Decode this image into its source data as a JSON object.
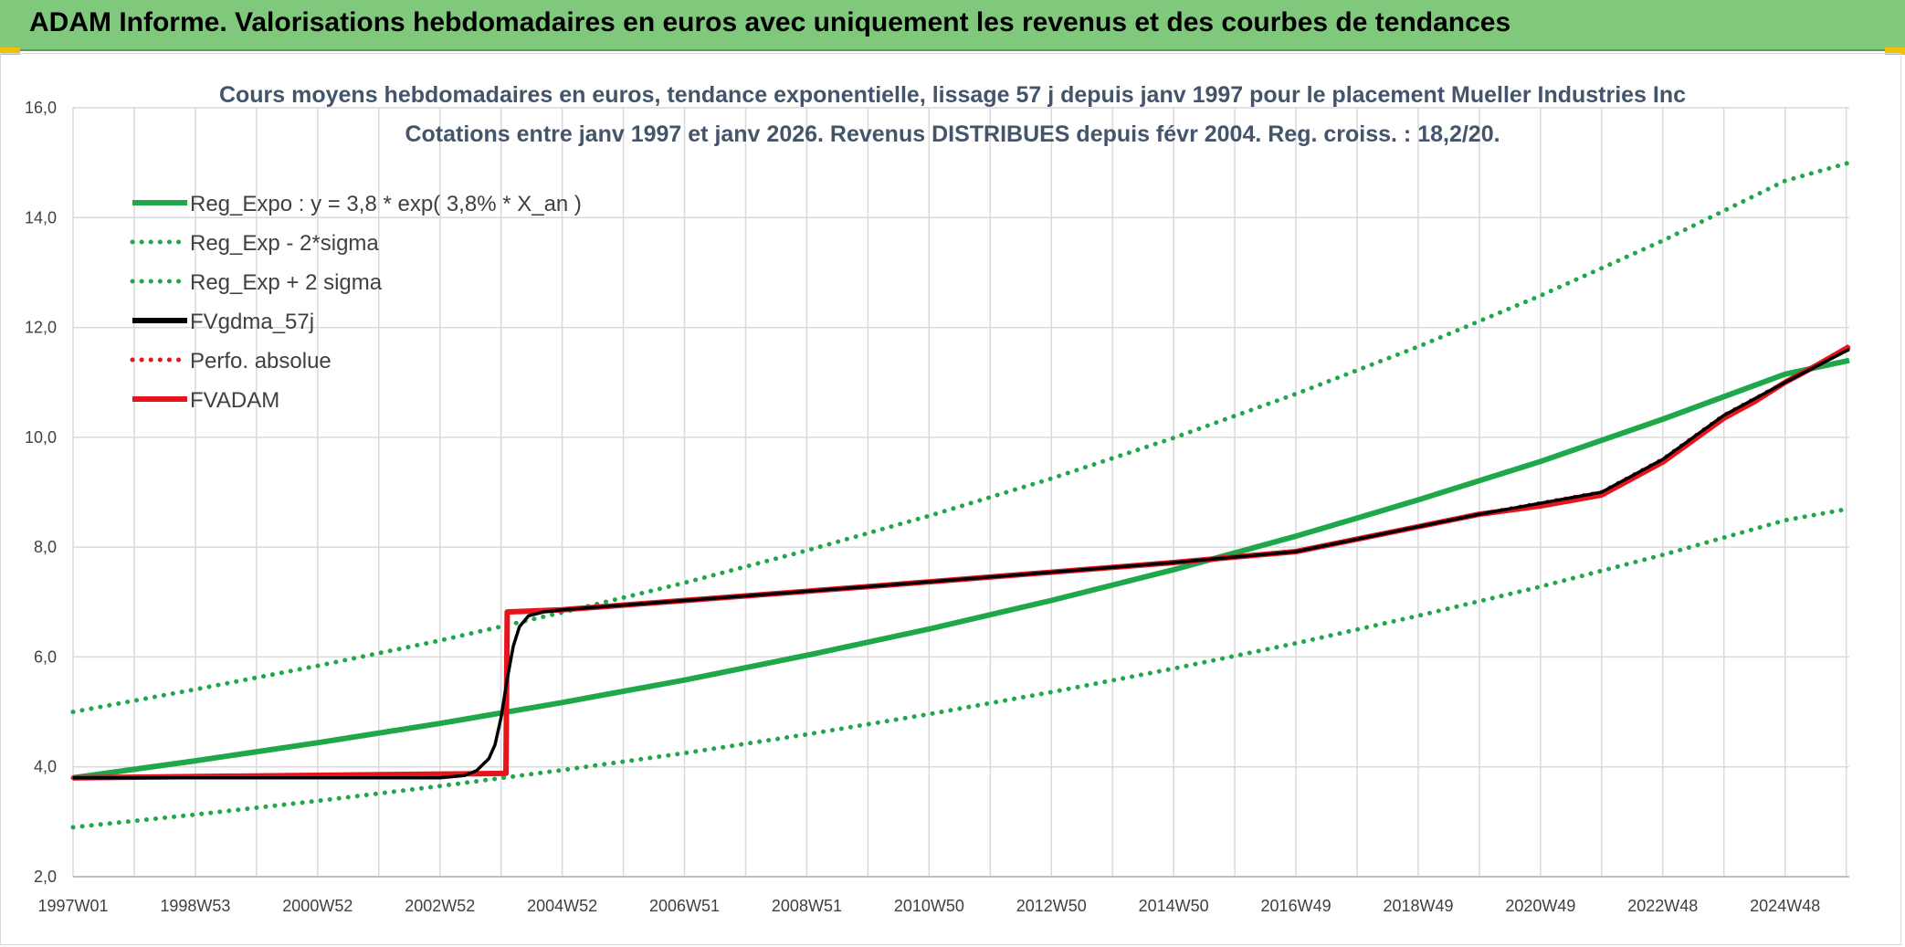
{
  "header": {
    "title": "ADAM Informe. Valorisations hebdomadaires en euros avec uniquement les revenus et des courbes de tendances"
  },
  "colors": {
    "header_bg": "#80c87c",
    "green": "#1fa84a",
    "red": "#e8141b",
    "black": "#000000"
  },
  "chart_data": {
    "type": "line",
    "title": "Cours moyens hebdomadaires en euros, tendance exponentielle, lissage 57 j depuis janv 1997 pour le placement Mueller Industries Inc",
    "subtitle": "Cotations entre janv 1997 et janv 2026. Revenus DISTRIBUES depuis févr 2004. Reg. croiss. : 18,2/20.",
    "xlabel": "",
    "ylabel": "",
    "x_range": [
      1997.0,
      2026.05
    ],
    "ylim": [
      2.0,
      16.0
    ],
    "y_ticks": [
      "2,0",
      "4,0",
      "6,0",
      "8,0",
      "10,0",
      "12,0",
      "14,0",
      "16,0"
    ],
    "x_ticks": [
      {
        "label": "1997W01",
        "x": 1997.0
      },
      {
        "label": "1998W53",
        "x": 1999.0
      },
      {
        "label": "2000W52",
        "x": 2001.0
      },
      {
        "label": "2002W52",
        "x": 2003.0
      },
      {
        "label": "2004W52",
        "x": 2005.0
      },
      {
        "label": "2006W51",
        "x": 2007.0
      },
      {
        "label": "2008W51",
        "x": 2009.0
      },
      {
        "label": "2010W50",
        "x": 2011.0
      },
      {
        "label": "2012W50",
        "x": 2013.0
      },
      {
        "label": "2014W50",
        "x": 2015.0
      },
      {
        "label": "2016W49",
        "x": 2017.0
      },
      {
        "label": "2018W49",
        "x": 2019.0
      },
      {
        "label": "2020W49",
        "x": 2021.0
      },
      {
        "label": "2022W48",
        "x": 2023.0
      },
      {
        "label": "2024W48",
        "x": 2025.0
      }
    ],
    "grid": true,
    "legend_position": "top-left",
    "series": [
      {
        "name": "Reg_Expo : y = 3,8 * exp( 3,8% *  X_an )",
        "color": "#1fa84a",
        "style": "solid",
        "x": [
          1997,
          1999,
          2001,
          2003,
          2005,
          2007,
          2009,
          2011,
          2013,
          2015,
          2017,
          2019,
          2021,
          2023,
          2025,
          2026.05
        ],
        "y": [
          3.8,
          4.11,
          4.44,
          4.79,
          5.17,
          5.58,
          6.03,
          6.51,
          7.03,
          7.59,
          8.2,
          8.86,
          9.56,
          10.33,
          11.15,
          11.4
        ]
      },
      {
        "name": "Reg_Exp - 2*sigma",
        "color": "#1fa84a",
        "style": "dotted",
        "x": [
          1997,
          1999,
          2001,
          2003,
          2005,
          2007,
          2009,
          2011,
          2013,
          2015,
          2017,
          2019,
          2021,
          2023,
          2025,
          2026.05
        ],
        "y": [
          2.9,
          3.13,
          3.38,
          3.65,
          3.94,
          4.25,
          4.59,
          4.96,
          5.36,
          5.79,
          6.25,
          6.75,
          7.28,
          7.86,
          8.49,
          8.7
        ]
      },
      {
        "name": "Reg_Exp + 2 sigma",
        "color": "#1fa84a",
        "style": "dotted",
        "x": [
          1997,
          1999,
          2001,
          2003,
          2005,
          2007,
          2009,
          2011,
          2013,
          2015,
          2017,
          2019,
          2021,
          2023,
          2025,
          2026.05
        ],
        "y": [
          5.0,
          5.41,
          5.84,
          6.3,
          6.81,
          7.35,
          7.94,
          8.57,
          9.25,
          9.99,
          10.79,
          11.65,
          12.58,
          13.58,
          14.67,
          15.0
        ]
      },
      {
        "name": "FVgdma_57j",
        "color": "#000000",
        "style": "solid",
        "x": [
          1997,
          2003,
          2003.4,
          2003.6,
          2003.8,
          2003.9,
          2004.0,
          2004.1,
          2004.2,
          2004.3,
          2004.45,
          2004.7,
          2005,
          2010,
          2015,
          2017,
          2020,
          2022,
          2023,
          2024,
          2025,
          2026.05
        ],
        "y": [
          3.8,
          3.8,
          3.84,
          3.93,
          4.15,
          4.4,
          4.9,
          5.6,
          6.2,
          6.55,
          6.75,
          6.82,
          6.86,
          7.28,
          7.72,
          7.92,
          8.6,
          9.0,
          9.6,
          10.4,
          11.0,
          11.6
        ]
      },
      {
        "name": "Perfo. absolue",
        "color": "#e8141b",
        "style": "dotted",
        "x": [
          1997,
          2004.08,
          2004.1,
          2005,
          2010,
          2015,
          2017,
          2020,
          2022,
          2023,
          2024,
          2025,
          2026.05
        ],
        "y": [
          3.8,
          3.88,
          6.82,
          6.86,
          7.28,
          7.72,
          7.92,
          8.6,
          9.0,
          9.6,
          10.4,
          11.0,
          11.65
        ]
      },
      {
        "name": "FVADAM",
        "color": "#e8141b",
        "style": "solid",
        "x": [
          1997,
          2004.08,
          2004.1,
          2005,
          2010,
          2015,
          2017,
          2020,
          2021,
          2022,
          2022.5,
          2023,
          2023.5,
          2024,
          2024.5,
          2025,
          2025.5,
          2026.05
        ],
        "y": [
          3.8,
          3.88,
          6.82,
          6.86,
          7.28,
          7.72,
          7.92,
          8.6,
          8.75,
          8.95,
          9.25,
          9.55,
          9.95,
          10.35,
          10.65,
          11.0,
          11.3,
          11.65
        ]
      }
    ]
  }
}
